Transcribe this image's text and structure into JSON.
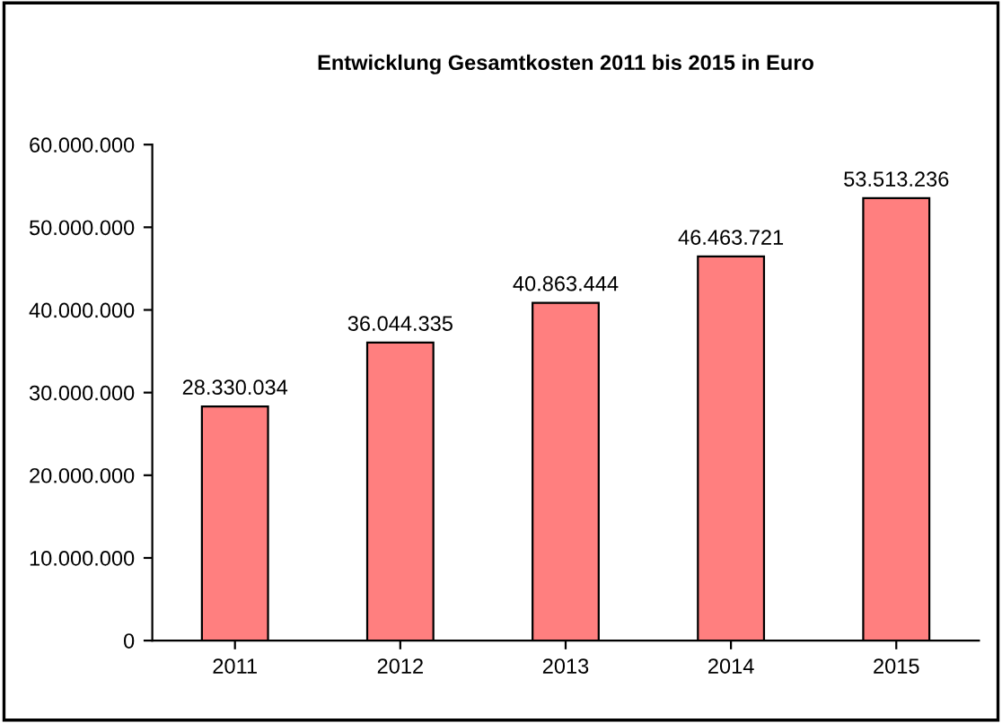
{
  "chart_data": {
    "type": "bar",
    "title": "Entwicklung Gesamtkosten 2011 bis 2015 in Euro",
    "categories": [
      "2011",
      "2012",
      "2013",
      "2014",
      "2015"
    ],
    "values": [
      28330034,
      36044335,
      40863444,
      46463721,
      53513236
    ],
    "value_labels": [
      "28.330.034",
      "36.044.335",
      "40.863.444",
      "46.463.721",
      "53.513.236"
    ],
    "color": "#ff7f7f",
    "ylim": [
      0,
      60000000
    ],
    "yticks": [
      0,
      {
        "value": 10000000,
        "label": "10.000.000"
      },
      {
        "value": 20000000,
        "label": "20.000.000"
      },
      {
        "value": 30000000,
        "label": "30.000.000"
      },
      {
        "value": 40000000,
        "label": "40.000.000"
      },
      {
        "value": 50000000,
        "label": "50.000.000"
      },
      {
        "value": 60000000,
        "label": "60.000.000"
      }
    ],
    "grid": false,
    "legend": false
  }
}
